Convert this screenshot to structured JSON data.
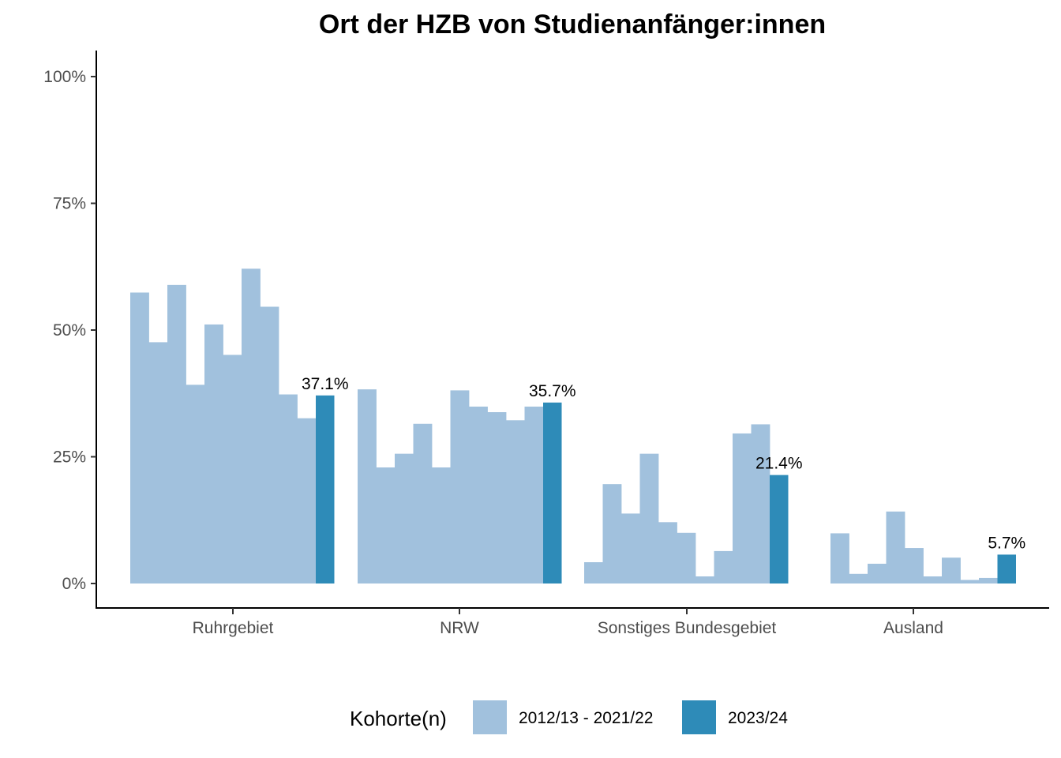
{
  "chart_data": {
    "type": "bar",
    "title": "Ort der HZB von Studienanfänger:innen",
    "xlabel": "",
    "ylabel": "",
    "ylim": [
      0,
      1.05
    ],
    "y_ticks": [
      0,
      0.25,
      0.5,
      0.75,
      1.0
    ],
    "y_tick_labels": [
      "0%",
      "25%",
      "50%",
      "75%",
      "100%"
    ],
    "grid": false,
    "legend_position": "bottom",
    "legend_title": "Kohorte(n)",
    "legend": [
      {
        "label": "2012/13 - 2021/22",
        "color": "#a1c1dd"
      },
      {
        "label": "2023/24",
        "color": "#2e8bb8"
      }
    ],
    "categories": [
      "Ruhrgebiet",
      "NRW",
      "Sonstiges Bundesgebiet",
      "Ausland"
    ],
    "series": [
      {
        "name": "2012/13 - 2021/22",
        "color": "#a1c1dd",
        "values": [
          [
            0.574,
            0.476,
            0.589,
            0.392,
            0.511,
            0.451,
            0.621,
            0.546,
            0.373,
            0.326
          ],
          [
            0.383,
            0.229,
            0.256,
            0.315,
            0.229,
            0.381,
            0.349,
            0.338,
            0.322,
            0.349
          ],
          [
            0.042,
            0.196,
            0.138,
            0.256,
            0.121,
            0.1,
            0.014,
            0.064,
            0.296,
            0.314
          ],
          [
            0.099,
            0.019,
            0.039,
            0.142,
            0.07,
            0.014,
            0.051,
            0.007,
            0.011
          ]
        ]
      },
      {
        "name": "2023/24",
        "color": "#2e8bb8",
        "values": [
          0.371,
          0.357,
          0.214,
          0.057
        ],
        "labels": [
          "37.1%",
          "35.7%",
          "21.4%",
          "5.7%"
        ]
      }
    ]
  }
}
